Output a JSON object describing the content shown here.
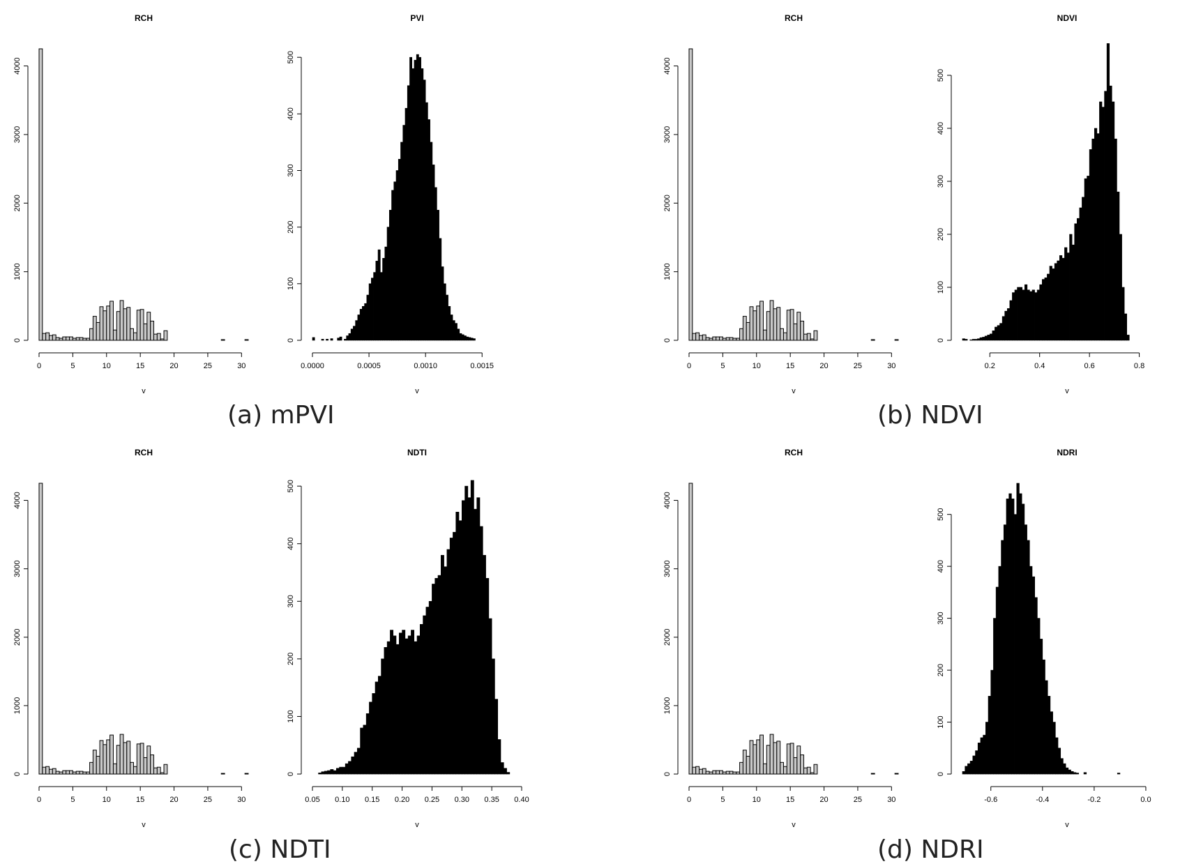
{
  "figure": {
    "captions": [
      "(a) mPVI",
      "(b) NDVI",
      "(c) NDTI",
      "(d) NDRI"
    ],
    "colors": {
      "rch_fill": "#c8c8c8",
      "index_fill": "#000000",
      "stroke": "#000000"
    }
  },
  "chart_data": [
    {
      "type": "bar",
      "panel": "a",
      "title": "RCH",
      "xlabel": "v",
      "ylabel": "",
      "x_edges_start": 0,
      "bin_width": 0.5,
      "values": [
        4250,
        100,
        110,
        70,
        80,
        40,
        30,
        50,
        50,
        50,
        30,
        40,
        40,
        30,
        30,
        170,
        350,
        260,
        490,
        430,
        500,
        570,
        150,
        420,
        580,
        460,
        480,
        170,
        110,
        440,
        450,
        240,
        410,
        280,
        90,
        100,
        20,
        140,
        0,
        0,
        0,
        0,
        0,
        0,
        0,
        0,
        0,
        0,
        0,
        0,
        0,
        0,
        0,
        0,
        10,
        0,
        0,
        0,
        0,
        0,
        0,
        10
      ],
      "xlim": [
        0,
        31
      ],
      "ylim": [
        0,
        4250
      ],
      "x_ticks": [
        "0",
        "5",
        "10",
        "15",
        "20",
        "25",
        "30"
      ],
      "x_tick_values": [
        0,
        5,
        10,
        15,
        20,
        25,
        30
      ],
      "y_ticks": [
        "0",
        "1000",
        "2000",
        "3000",
        "4000"
      ],
      "y_tick_values": [
        0,
        1000,
        2000,
        3000,
        4000
      ]
    },
    {
      "type": "bar",
      "panel": "a",
      "title": "PVI",
      "xlabel": "v",
      "ylabel": "",
      "x_edges_start": 0,
      "bin_width": 2e-05,
      "values": [
        5,
        0,
        0,
        0,
        2,
        0,
        2,
        0,
        3,
        0,
        0,
        4,
        6,
        0,
        2,
        8,
        12,
        20,
        25,
        35,
        45,
        55,
        60,
        65,
        80,
        100,
        110,
        120,
        140,
        160,
        120,
        145,
        165,
        200,
        230,
        265,
        280,
        300,
        320,
        350,
        380,
        410,
        450,
        500,
        480,
        495,
        505,
        500,
        480,
        460,
        420,
        390,
        350,
        310,
        270,
        230,
        180,
        130,
        100,
        80,
        60,
        45,
        35,
        30,
        20,
        12,
        10,
        8,
        6,
        5,
        4,
        3
      ],
      "xlim": [
        0,
        0.00185
      ],
      "ylim": [
        0,
        515
      ],
      "x_ticks": [
        "0.0000",
        "0.0005",
        "0.0010",
        "0.0015"
      ],
      "x_tick_values": [
        0,
        0.0005,
        0.001,
        0.0015
      ],
      "y_ticks": [
        "0",
        "100",
        "200",
        "300",
        "400",
        "500"
      ],
      "y_tick_values": [
        0,
        100,
        200,
        300,
        400,
        500
      ]
    },
    {
      "type": "bar",
      "panel": "b",
      "title": "RCH",
      "xlabel": "v",
      "ylabel": "",
      "x_edges_start": 0,
      "bin_width": 0.5,
      "values": [
        4250,
        100,
        110,
        70,
        80,
        40,
        30,
        50,
        50,
        50,
        30,
        40,
        40,
        30,
        30,
        170,
        350,
        260,
        490,
        430,
        500,
        570,
        150,
        420,
        580,
        460,
        480,
        170,
        110,
        440,
        450,
        240,
        410,
        280,
        90,
        100,
        20,
        140,
        0,
        0,
        0,
        0,
        0,
        0,
        0,
        0,
        0,
        0,
        0,
        0,
        0,
        0,
        0,
        0,
        10,
        0,
        0,
        0,
        0,
        0,
        0,
        10
      ],
      "xlim": [
        0,
        31
      ],
      "ylim": [
        0,
        4250
      ],
      "x_ticks": [
        "0",
        "5",
        "10",
        "15",
        "20",
        "25",
        "30"
      ],
      "x_tick_values": [
        0,
        5,
        10,
        15,
        20,
        25,
        30
      ],
      "y_ticks": [
        "0",
        "1000",
        "2000",
        "3000",
        "4000"
      ],
      "y_tick_values": [
        0,
        1000,
        2000,
        3000,
        4000
      ]
    },
    {
      "type": "bar",
      "panel": "b",
      "title": "NDVI",
      "xlabel": "v",
      "ylabel": "",
      "x_edges_start": 0.09,
      "bin_width": 0.01,
      "values": [
        3,
        2,
        0,
        1,
        2,
        2,
        3,
        5,
        6,
        8,
        10,
        12,
        18,
        25,
        28,
        32,
        45,
        55,
        60,
        75,
        90,
        95,
        100,
        100,
        95,
        105,
        95,
        92,
        95,
        90,
        95,
        105,
        115,
        118,
        125,
        140,
        135,
        145,
        150,
        160,
        155,
        175,
        165,
        200,
        180,
        220,
        230,
        250,
        270,
        305,
        310,
        360,
        380,
        400,
        390,
        450,
        440,
        470,
        560,
        480,
        450,
        380,
        280,
        200,
        100,
        50,
        10
      ],
      "xlim": [
        0.09,
        0.93
      ],
      "ylim": [
        0,
        550
      ],
      "x_ticks": [
        "0.2",
        "0.4",
        "0.6",
        "0.8"
      ],
      "x_tick_values": [
        0.2,
        0.4,
        0.6,
        0.8
      ],
      "y_ticks": [
        "0",
        "100",
        "200",
        "300",
        "400",
        "500"
      ],
      "y_tick_values": [
        0,
        100,
        200,
        300,
        400,
        500
      ]
    },
    {
      "type": "bar",
      "panel": "c",
      "title": "RCH",
      "xlabel": "v",
      "ylabel": "",
      "x_edges_start": 0,
      "bin_width": 0.5,
      "values": [
        4250,
        100,
        110,
        70,
        80,
        40,
        30,
        50,
        50,
        50,
        30,
        40,
        40,
        30,
        30,
        170,
        350,
        260,
        490,
        430,
        500,
        570,
        150,
        420,
        580,
        460,
        480,
        170,
        110,
        440,
        450,
        240,
        410,
        280,
        90,
        100,
        20,
        140,
        0,
        0,
        0,
        0,
        0,
        0,
        0,
        0,
        0,
        0,
        0,
        0,
        0,
        0,
        0,
        0,
        10,
        0,
        0,
        0,
        0,
        0,
        0,
        10
      ],
      "xlim": [
        0,
        31
      ],
      "ylim": [
        0,
        4250
      ],
      "x_ticks": [
        "0",
        "5",
        "10",
        "15",
        "20",
        "25",
        "30"
      ],
      "x_tick_values": [
        0,
        5,
        10,
        15,
        20,
        25,
        30
      ],
      "y_ticks": [
        "0",
        "1000",
        "2000",
        "3000",
        "4000"
      ],
      "y_tick_values": [
        0,
        1000,
        2000,
        3000,
        4000
      ]
    },
    {
      "type": "bar",
      "panel": "c",
      "title": "NDTI",
      "xlabel": "v",
      "ylabel": "",
      "x_edges_start": 0.06,
      "bin_width": 0.005,
      "values": [
        2,
        4,
        5,
        6,
        8,
        6,
        10,
        12,
        12,
        18,
        22,
        30,
        38,
        45,
        80,
        85,
        105,
        125,
        140,
        160,
        170,
        200,
        220,
        230,
        250,
        240,
        225,
        245,
        250,
        235,
        240,
        250,
        230,
        240,
        260,
        275,
        290,
        300,
        330,
        340,
        345,
        380,
        360,
        390,
        410,
        420,
        455,
        440,
        475,
        500,
        480,
        510,
        460,
        480,
        430,
        380,
        340,
        270,
        200,
        130,
        60,
        20,
        10,
        3
      ],
      "xlim": [
        0.05,
        0.4
      ],
      "ylim": [
        0,
        505
      ],
      "x_ticks": [
        "0.05",
        "0.10",
        "0.15",
        "0.20",
        "0.25",
        "0.30",
        "0.35",
        "0.40"
      ],
      "x_tick_values": [
        0.05,
        0.1,
        0.15,
        0.2,
        0.25,
        0.3,
        0.35,
        0.4
      ],
      "y_ticks": [
        "0",
        "100",
        "200",
        "300",
        "400",
        "500"
      ],
      "y_tick_values": [
        0,
        100,
        200,
        300,
        400,
        500
      ]
    },
    {
      "type": "bar",
      "panel": "d",
      "title": "RCH",
      "xlabel": "v",
      "ylabel": "",
      "x_edges_start": 0,
      "bin_width": 0.5,
      "values": [
        4250,
        100,
        110,
        70,
        80,
        40,
        30,
        50,
        50,
        50,
        30,
        40,
        40,
        30,
        30,
        170,
        350,
        260,
        490,
        430,
        500,
        570,
        150,
        420,
        580,
        460,
        480,
        170,
        110,
        440,
        450,
        240,
        410,
        280,
        90,
        100,
        20,
        140,
        0,
        0,
        0,
        0,
        0,
        0,
        0,
        0,
        0,
        0,
        0,
        0,
        0,
        0,
        0,
        0,
        10,
        0,
        0,
        0,
        0,
        0,
        0,
        10
      ],
      "xlim": [
        0,
        31
      ],
      "ylim": [
        0,
        4250
      ],
      "x_ticks": [
        "0",
        "5",
        "10",
        "15",
        "20",
        "25",
        "30"
      ],
      "x_tick_values": [
        0,
        5,
        10,
        15,
        20,
        25,
        30
      ],
      "y_ticks": [
        "0",
        "1000",
        "2000",
        "3000",
        "4000"
      ],
      "y_tick_values": [
        0,
        1000,
        2000,
        3000,
        4000
      ]
    },
    {
      "type": "bar",
      "panel": "d",
      "title": "NDRI",
      "xlabel": "v",
      "ylabel": "",
      "x_edges_start": -0.71,
      "bin_width": 0.01,
      "values": [
        5,
        15,
        20,
        25,
        35,
        45,
        60,
        70,
        75,
        100,
        150,
        200,
        300,
        360,
        400,
        450,
        480,
        530,
        540,
        530,
        500,
        560,
        540,
        520,
        480,
        450,
        400,
        380,
        340,
        300,
        260,
        220,
        180,
        150,
        120,
        100,
        70,
        50,
        30,
        20,
        12,
        8,
        5,
        3,
        2,
        0,
        0,
        3,
        0,
        0,
        0,
        0,
        0,
        0,
        0,
        0,
        0,
        0,
        0,
        0,
        2
      ],
      "xlim": [
        -0.71,
        0.1
      ],
      "ylim": [
        0,
        560
      ],
      "x_ticks": [
        "-0.6",
        "-0.4",
        "-0.2",
        "0.0"
      ],
      "x_tick_values": [
        -0.6,
        -0.4,
        -0.2,
        0
      ],
      "y_ticks": [
        "0",
        "100",
        "200",
        "300",
        "400",
        "500"
      ],
      "y_tick_values": [
        0,
        100,
        200,
        300,
        400,
        500
      ]
    }
  ]
}
